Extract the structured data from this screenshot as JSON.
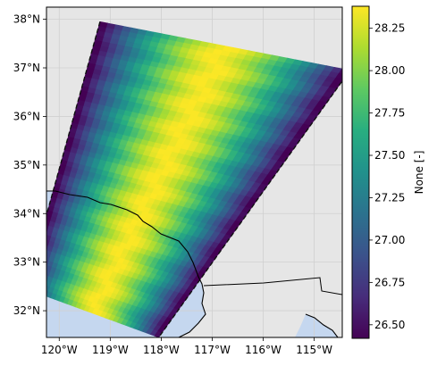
{
  "chart_data": {
    "type": "heatmap",
    "title": "",
    "projection": "plate-carree",
    "extent": {
      "lon": [
        -120.25,
        -114.45
      ],
      "lat": [
        31.45,
        38.25
      ]
    },
    "x_ticks": [
      {
        "value": -120,
        "label": "120°W"
      },
      {
        "value": -119,
        "label": "119°W"
      },
      {
        "value": -118,
        "label": "118°W"
      },
      {
        "value": -117,
        "label": "117°W"
      },
      {
        "value": -116,
        "label": "116°W"
      },
      {
        "value": -115,
        "label": "115°W"
      }
    ],
    "y_ticks": [
      {
        "value": 32,
        "label": "32°N"
      },
      {
        "value": 33,
        "label": "33°N"
      },
      {
        "value": 34,
        "label": "34°N"
      },
      {
        "value": 35,
        "label": "35°N"
      },
      {
        "value": 36,
        "label": "36°N"
      },
      {
        "value": 37,
        "label": "37°N"
      },
      {
        "value": 38,
        "label": "38°N"
      }
    ],
    "grid": true,
    "swath_corners": [
      {
        "lon": -119.2,
        "lat": 37.95
      },
      {
        "lon": -114.3,
        "lat": 36.95
      },
      {
        "lon": -118.05,
        "lat": 31.45
      },
      {
        "lon": -120.65,
        "lat": 32.45
      }
    ],
    "colorbar": {
      "label": "None [-]",
      "min": 26.42,
      "max": 28.38,
      "colormap": "viridis",
      "ticks": [
        {
          "value": 26.5,
          "label": "26.50"
        },
        {
          "value": 26.75,
          "label": "26.75"
        },
        {
          "value": 27.0,
          "label": "27.00"
        },
        {
          "value": 27.25,
          "label": "27.25"
        },
        {
          "value": 27.5,
          "label": "27.50"
        },
        {
          "value": 27.75,
          "label": "27.75"
        },
        {
          "value": 28.0,
          "label": "28.00"
        },
        {
          "value": 28.25,
          "label": "28.25"
        }
      ]
    },
    "colors": {
      "land": "#e6e6e6",
      "ocean": "#c5d7ef",
      "coastline": "#000000",
      "grid": "#d0d0d0"
    }
  }
}
